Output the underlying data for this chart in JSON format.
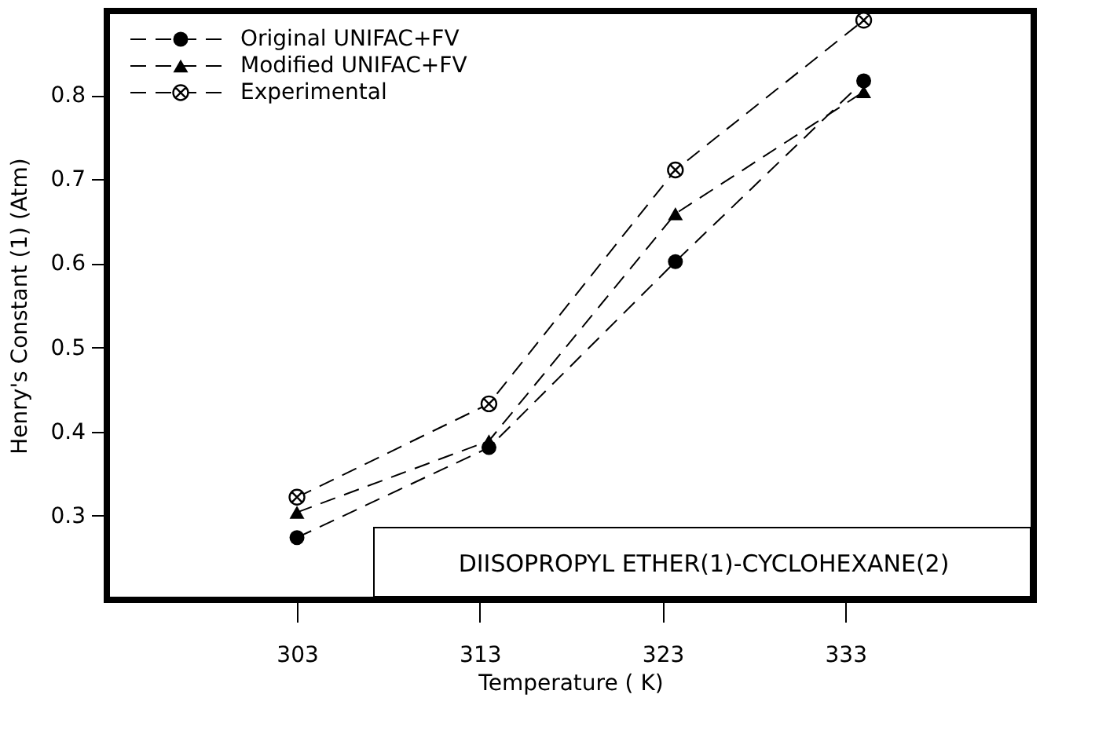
{
  "chart_data": {
    "type": "line",
    "xlabel": "Temperature ( K)",
    "ylabel": "Henry's Constant (1) (Atm)",
    "xlim": [
      292.6,
      343.3
    ],
    "xticks": [
      303,
      313,
      323,
      333
    ],
    "ylim": [
      0.2,
      0.9
    ],
    "yticks": [
      0.3,
      0.4,
      0.5,
      0.6,
      0.7,
      0.8
    ],
    "grid": false,
    "legend": "top left",
    "line_style": "dashed",
    "annotations": [
      "DIISOPROPYL ETHER(1)-CYCLOHEXANE(2)"
    ],
    "series": [
      {
        "name": "Original UNIFAC+FV",
        "color": "#000000",
        "marker": "circle",
        "x": [
          303,
          313.5,
          323.7,
          334
        ],
        "values": [
          0.274,
          0.381,
          0.602,
          0.817
        ]
      },
      {
        "name": "Modified UNIFAC+FV",
        "color": "#000000",
        "marker": "triangle",
        "x": [
          303,
          313.5,
          323.7,
          334
        ],
        "values": [
          0.304,
          0.389,
          0.659,
          0.804
        ]
      },
      {
        "name": "Experimental",
        "color": "#000000",
        "marker": "cross",
        "x": [
          303,
          313.5,
          323.7,
          334
        ],
        "values": [
          0.322,
          0.433,
          0.711,
          0.889
        ]
      }
    ]
  }
}
